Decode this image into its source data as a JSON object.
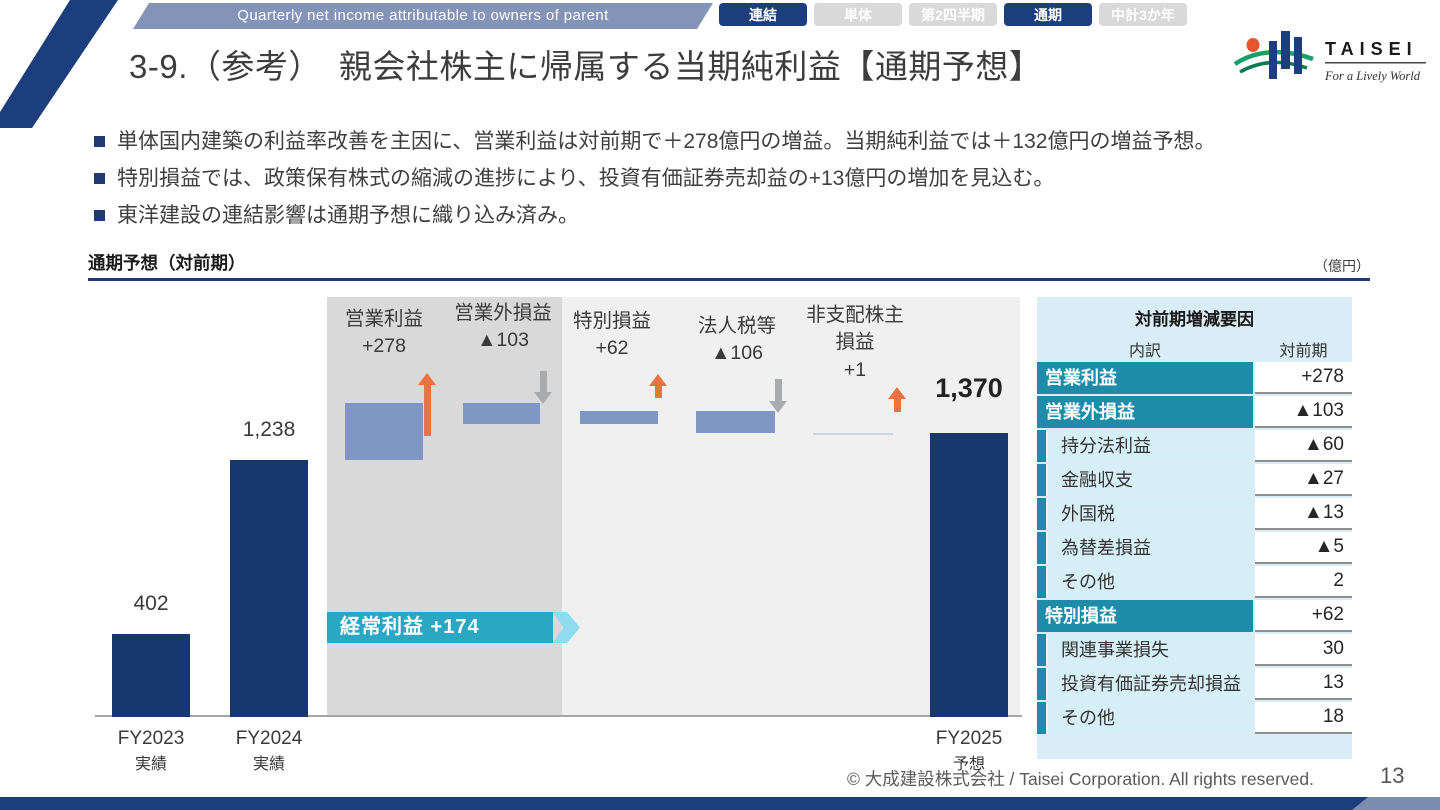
{
  "header": {
    "ribbon_en": "Quarterly net income attributable to owners of parent",
    "title": "3-9.（参考）　親会社株主に帰属する当期純利益【通期予想】",
    "filter_buttons": [
      {
        "label": "連結",
        "active": true
      },
      {
        "label": "単体",
        "active": false
      },
      {
        "label": "第2四半期",
        "active": false
      },
      {
        "label": "通期",
        "active": true
      },
      {
        "label": "中計3か年",
        "active": false
      }
    ],
    "logo": {
      "brand": "TAISEI",
      "tagline": "For a Lively World"
    }
  },
  "bullets": [
    "単体国内建築の利益率改善を主因に、営業利益は対前期で＋278億円の増益。当期純利益では＋132億円の増益予想。",
    "特別損益では、政策保有株式の縮減の進捗により、投資有価証券売却益の+13億円の増加を見込む。",
    "東洋建設の連結影響は通期予想に織り込み済み。"
  ],
  "section": {
    "title": "通期予想（対前期）",
    "unit": "（億円）"
  },
  "chart_data": {
    "type": "waterfall",
    "title": "通期予想（対前期）",
    "unit": "億円",
    "ylim": [
      0,
      1600
    ],
    "items": [
      {
        "kind": "total",
        "x_label": "FY2023",
        "x_sublabel": "実績",
        "value": 402,
        "display": "402"
      },
      {
        "kind": "total",
        "x_label": "FY2024",
        "x_sublabel": "実績",
        "value": 1238,
        "display": "1,238"
      },
      {
        "kind": "delta",
        "name": "営業利益",
        "value": 278,
        "display": "+278"
      },
      {
        "kind": "delta",
        "name": "営業外損益",
        "value": -103,
        "display": "▲103"
      },
      {
        "kind": "delta",
        "name": "特別損益",
        "value": 62,
        "display": "+62"
      },
      {
        "kind": "delta",
        "name": "法人税等",
        "value": -106,
        "display": "▲106"
      },
      {
        "kind": "delta",
        "name": "非支配株主損益",
        "name_lines": [
          "非支配株主",
          "損益"
        ],
        "value": 1,
        "display": "+1"
      },
      {
        "kind": "total",
        "x_label": "FY2025",
        "x_sublabel": "予想",
        "value": 1370,
        "display": "1,370",
        "emphasis": true
      }
    ],
    "banner": {
      "label": "経常利益 +174"
    }
  },
  "factor_table": {
    "title": "対前期増減要因",
    "columns": [
      "内訳",
      "対前期"
    ],
    "rows": [
      {
        "label": "営業利益",
        "value": "+278",
        "level": "major"
      },
      {
        "label": "営業外損益",
        "value": "▲103",
        "level": "major"
      },
      {
        "label": "持分法利益",
        "value": "▲60",
        "level": "sub"
      },
      {
        "label": "金融収支",
        "value": "▲27",
        "level": "sub"
      },
      {
        "label": "外国税",
        "value": "▲13",
        "level": "sub"
      },
      {
        "label": "為替差損益",
        "value": "▲5",
        "level": "sub"
      },
      {
        "label": "その他",
        "value": "2",
        "level": "sub"
      },
      {
        "label": "特別損益",
        "value": "+62",
        "level": "major"
      },
      {
        "label": "関連事業損失",
        "value": "30",
        "level": "sub"
      },
      {
        "label": "投資有価証券売却損益",
        "value": "13",
        "level": "sub"
      },
      {
        "label": "その他",
        "value": "18",
        "level": "sub"
      }
    ]
  },
  "footer": {
    "copyright": "© 大成建設株式会社 / Taisei Corporation. All rights reserved.",
    "page": "13"
  },
  "colors": {
    "navy": "#1c3e7c",
    "bar_navy": "#17386e",
    "delta_slate": "#8096c4",
    "arrow_up_orange": "#e97342",
    "arrow_down_gray": "#aaabac",
    "banner_teal": "#2ba7c3",
    "table_teal": "#1e8ca9",
    "table_bg": "#d9edf6",
    "panel_dark": "#d9d9d9",
    "panel_light": "#f0f0f0",
    "ribbon_slate": "#8394b8"
  }
}
